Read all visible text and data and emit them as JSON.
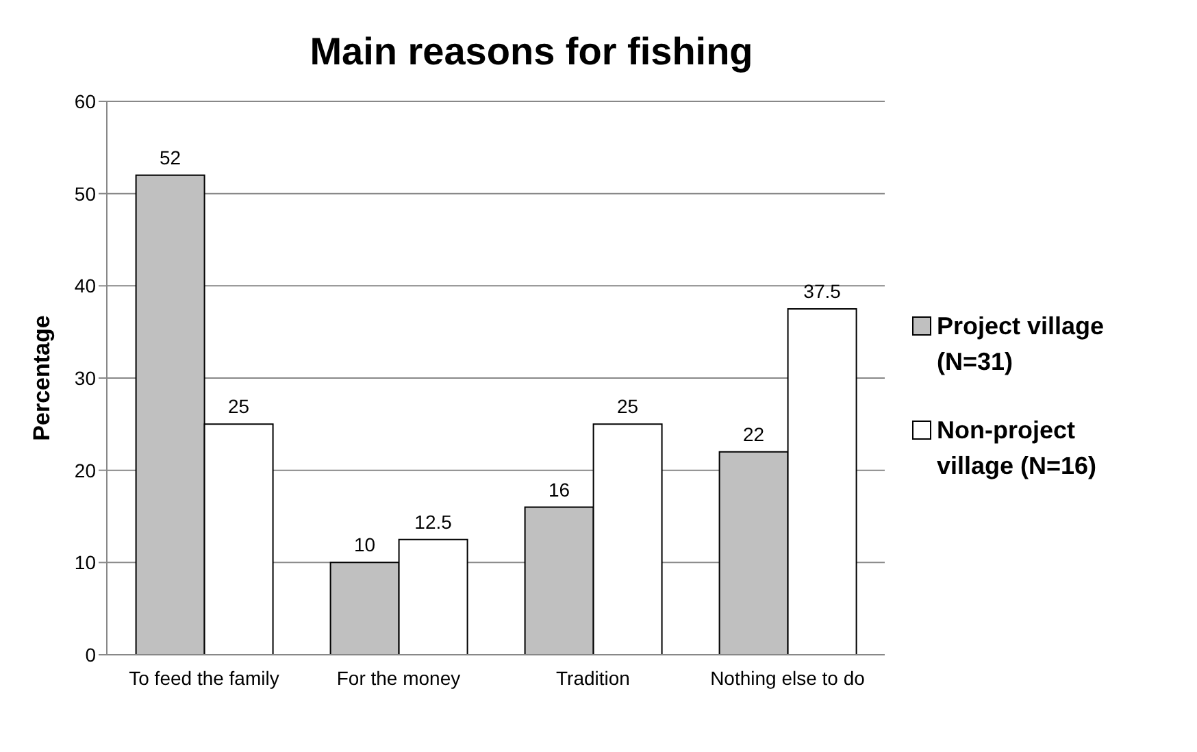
{
  "chart_data": {
    "type": "bar",
    "title": "Main reasons for fishing",
    "ylabel": "Percentage",
    "categories": [
      "To feed the family",
      "For the money",
      "Tradition",
      "Nothing else to do"
    ],
    "series": [
      {
        "name": "Project village (N=31)",
        "color": "#c0c0c0",
        "values": [
          52,
          10,
          16,
          22
        ]
      },
      {
        "name": "Non-project village (N=16)",
        "color": "#ffffff",
        "values": [
          25,
          12.5,
          25,
          37.5
        ]
      }
    ],
    "ylim": [
      0,
      60
    ],
    "yticks": [
      0,
      10,
      20,
      30,
      40,
      50,
      60
    ],
    "grid": "y",
    "legend": "right",
    "data_labels": true
  }
}
